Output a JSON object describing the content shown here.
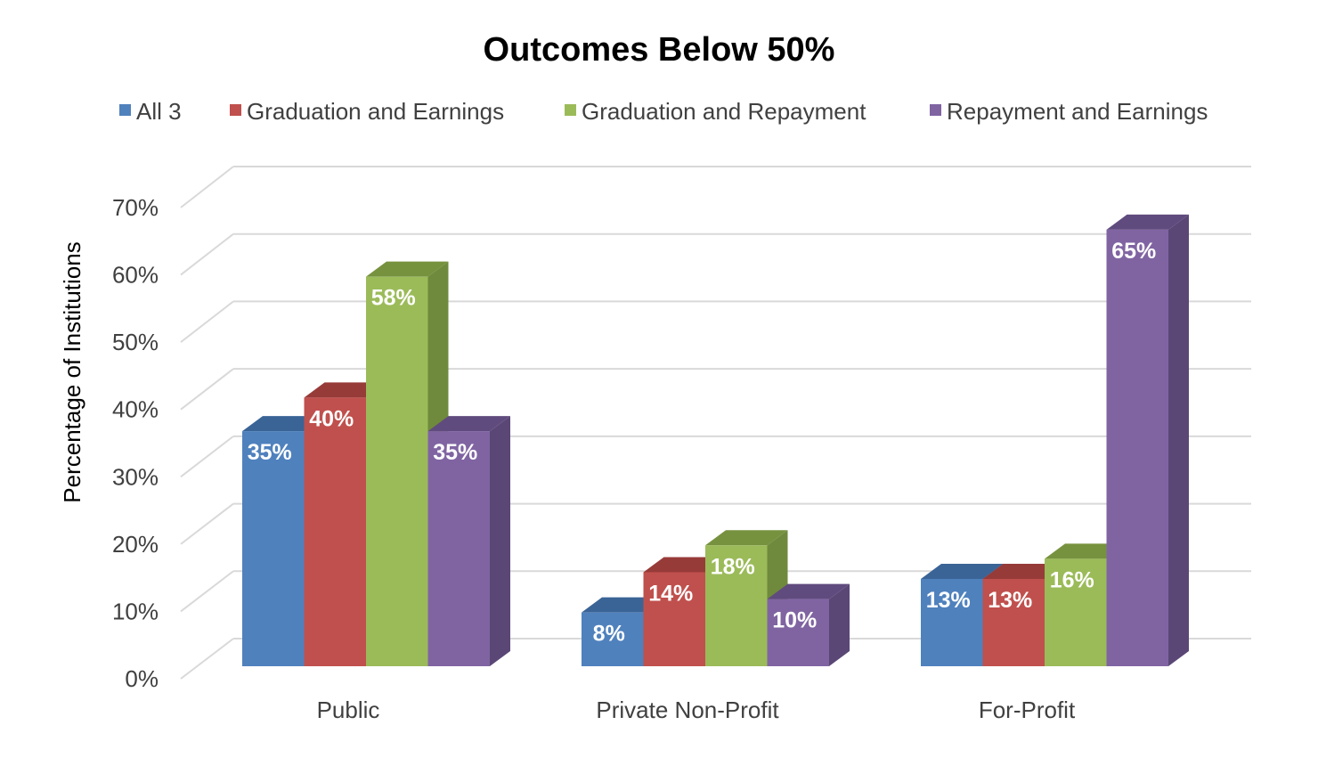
{
  "chart_data": {
    "type": "bar",
    "style": "3d-clustered-column",
    "title": "Outcomes Below 50%",
    "xlabel": "",
    "ylabel": "Percentage of Institutions",
    "ylim": [
      0,
      70
    ],
    "yticks": [
      "0%",
      "10%",
      "20%",
      "30%",
      "40%",
      "50%",
      "60%",
      "70%"
    ],
    "ytick_values": [
      0,
      10,
      20,
      30,
      40,
      50,
      60,
      70
    ],
    "grid": true,
    "legend_position": "top",
    "categories": [
      "Public",
      "Private Non-Profit",
      "For-Profit"
    ],
    "series": [
      {
        "name": "All 3",
        "values": [
          35,
          8,
          13
        ],
        "labels": [
          "35%",
          "8%",
          "13%"
        ],
        "color": "#4F81BD",
        "side": "#385D8A",
        "top": "#3A6496"
      },
      {
        "name": "Graduation and Earnings",
        "values": [
          40,
          14,
          13
        ],
        "labels": [
          "40%",
          "14%",
          "13%"
        ],
        "color": "#C0504D",
        "side": "#8C3836",
        "top": "#973B39"
      },
      {
        "name": "Graduation and Repayment",
        "values": [
          58,
          18,
          16
        ],
        "labels": [
          "58%",
          "18%",
          "16%"
        ],
        "color": "#9BBB59",
        "side": "#6F8A3C",
        "top": "#77923F"
      },
      {
        "name": "Repayment and Earnings",
        "values": [
          35,
          10,
          65
        ],
        "labels": [
          "35%",
          "10%",
          "65%"
        ],
        "color": "#8064A2",
        "side": "#5A4776",
        "top": "#604B7E"
      }
    ]
  }
}
